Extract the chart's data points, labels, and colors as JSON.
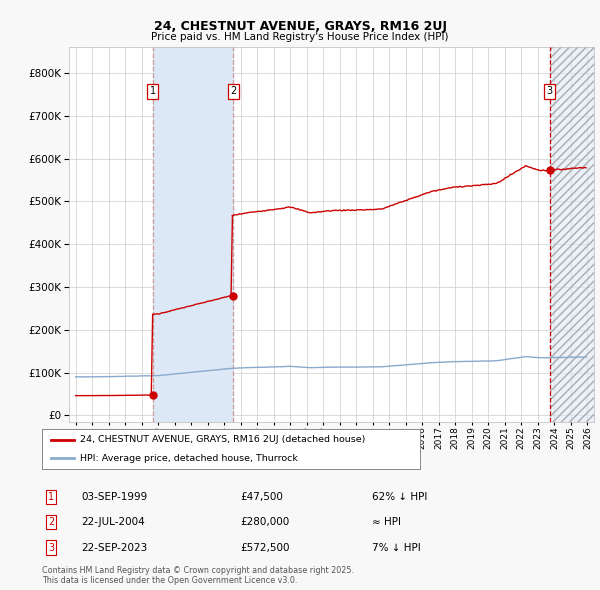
{
  "title1": "24, CHESTNUT AVENUE, GRAYS, RM16 2UJ",
  "title2": "Price paid vs. HM Land Registry's House Price Index (HPI)",
  "background_color": "#f8f8f8",
  "plot_background": "#ffffff",
  "grid_color": "#cccccc",
  "hpi_color": "#88aacc",
  "price_color": "#cc0000",
  "shade_color": "#dce8f5",
  "annotation_color": "#cc0000",
  "legend1": "24, CHESTNUT AVENUE, GRAYS, RM16 2UJ (detached house)",
  "legend2": "HPI: Average price, detached house, Thurrock",
  "sale1_date": "03-SEP-1999",
  "sale1_price": "£47,500",
  "sale1_hpi": "62% ↓ HPI",
  "sale2_date": "22-JUL-2004",
  "sale2_price": "£280,000",
  "sale2_hpi": "≈ HPI",
  "sale3_date": "22-SEP-2023",
  "sale3_price": "£572,500",
  "sale3_hpi": "7% ↓ HPI",
  "footer": "Contains HM Land Registry data © Crown copyright and database right 2025.\nThis data is licensed under the Open Government Licence v3.0.",
  "sale1_year": 1999.67,
  "sale2_year": 2004.54,
  "sale3_year": 2023.72,
  "xlim_left": 1994.6,
  "xlim_right": 2026.4,
  "ylim_bottom": -15000,
  "ylim_top": 860000
}
